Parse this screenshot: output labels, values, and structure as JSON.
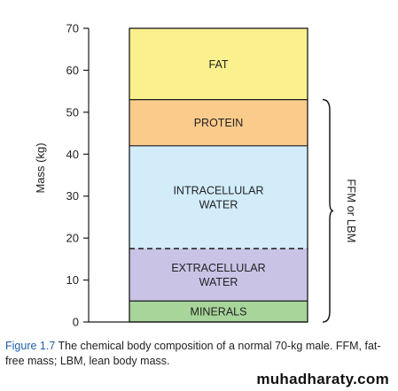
{
  "chart_data": {
    "type": "bar",
    "subtype": "stacked-single",
    "ylabel": "Mass (kg)",
    "ylim": [
      0,
      70
    ],
    "yticks": [
      0,
      10,
      20,
      30,
      40,
      50,
      60,
      70
    ],
    "grid": false,
    "segments": [
      {
        "label": [
          "MINERALS"
        ],
        "from": 0,
        "to": 5,
        "color": "#a8d59a"
      },
      {
        "label": [
          "EXTRACELLULAR",
          "WATER"
        ],
        "from": 5,
        "to": 17.5,
        "color": "#c9c3e6"
      },
      {
        "label": [
          "INTRACELLULAR",
          "WATER"
        ],
        "from": 17.5,
        "to": 42,
        "color": "#d2ecfa"
      },
      {
        "label": [
          "PROTEIN"
        ],
        "from": 42,
        "to": 53,
        "color": "#fbcb8c"
      },
      {
        "label": [
          "FAT"
        ],
        "from": 53,
        "to": 70,
        "color": "#faf18e"
      }
    ],
    "dashed_boundary": 17.5,
    "bracket": {
      "from": 0,
      "to": 53,
      "label": "FFM or LBM"
    }
  },
  "caption": {
    "figure_number": "Figure 1.7",
    "text": "The chemical body composition of a normal 70-kg male. FFM, fat-free mass; LBM, lean body mass."
  },
  "watermark": "muhadharaty.com"
}
